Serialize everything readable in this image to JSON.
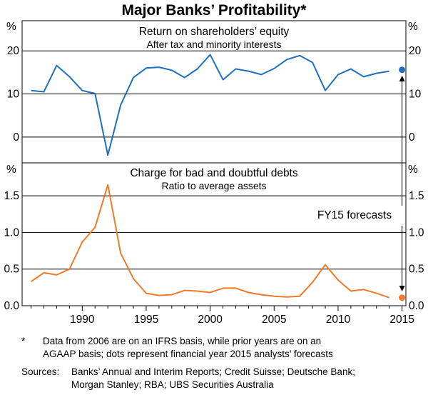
{
  "chart_data": {
    "type": "line",
    "title": "Major Banks’ Profitability*",
    "x": [
      1986,
      1987,
      1988,
      1989,
      1990,
      1991,
      1992,
      1993,
      1994,
      1995,
      1996,
      1997,
      1998,
      1999,
      2000,
      2001,
      2002,
      2003,
      2004,
      2005,
      2006,
      2007,
      2008,
      2009,
      2010,
      2011,
      2012,
      2013,
      2014
    ],
    "xlim": [
      1985.3,
      2015.3
    ],
    "xticks": [
      "1990",
      "1995",
      "2000",
      "2005",
      "2010",
      "2015"
    ],
    "panels": [
      {
        "title": "Return on shareholders’ equity",
        "subtitle": "After tax and minority interests",
        "unit": "%",
        "ylim": [
          -6,
          27
        ],
        "yticks": [
          "0",
          "10",
          "20"
        ],
        "series": [
          {
            "name": "ROE",
            "color": "#1f6fbf",
            "values": [
              10.8,
              10.5,
              16.6,
              14.0,
              10.8,
              10.1,
              -4.2,
              7.4,
              13.8,
              16.0,
              16.2,
              15.5,
              13.8,
              15.8,
              19.1,
              13.3,
              15.8,
              15.3,
              14.5,
              15.9,
              18.0,
              18.9,
              17.3,
              10.8,
              14.5,
              15.8,
              14.0,
              14.8,
              15.3
            ]
          }
        ],
        "forecast": {
          "label": "FY15",
          "value": 15.6,
          "color": "#1f6fbf"
        }
      },
      {
        "title": "Charge for bad and doubtful debts",
        "subtitle": "Ratio to average assets",
        "unit": "%",
        "ylim": [
          0,
          1.95
        ],
        "yticks": [
          "0.0",
          "0.5",
          "1.0",
          "1.5"
        ],
        "series": [
          {
            "name": "Bad debts charge",
            "color": "#f07a2a",
            "values": [
              0.33,
              0.45,
              0.42,
              0.5,
              0.87,
              1.07,
              1.65,
              0.72,
              0.37,
              0.17,
              0.14,
              0.15,
              0.21,
              0.2,
              0.18,
              0.24,
              0.24,
              0.18,
              0.15,
              0.13,
              0.12,
              0.13,
              0.32,
              0.56,
              0.35,
              0.2,
              0.22,
              0.17,
              0.11
            ]
          }
        ],
        "forecast": {
          "label": "FY15",
          "value": 0.11,
          "color": "#f07a2a"
        }
      }
    ],
    "annotation": "FY15 forecasts"
  },
  "notes": {
    "star": "*",
    "footnote_line1": "Data from 2006 are on an IFRS basis, while prior years are on an",
    "footnote_line2": "AGAAP basis; dots represent financial year 2015 analysts’ forecasts",
    "sources_label": "Sources:",
    "sources_line1": "Banks’ Annual and Interim Reports; Credit Suisse; Deutsche Bank;",
    "sources_line2": "Morgan Stanley; RBA; UBS Securities Australia"
  }
}
